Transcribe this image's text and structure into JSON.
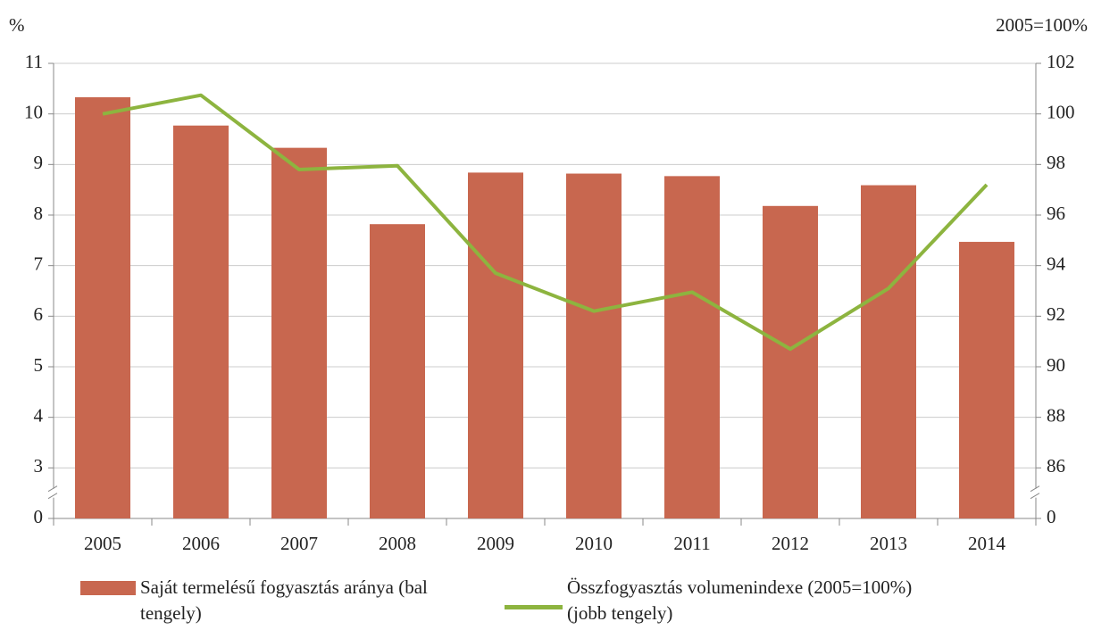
{
  "chart_data": {
    "type": "bar_line",
    "y_unit": "%",
    "y2_unit": "2005=100%",
    "categories": [
      "2005",
      "2006",
      "2007",
      "2008",
      "2009",
      "2010",
      "2011",
      "2012",
      "2013",
      "2014"
    ],
    "series": [
      {
        "name": "Saját termelésű fogyasztás aránya (bal tengely)",
        "type": "bar",
        "color": "#c8674f",
        "axis": "y",
        "values": [
          10.33,
          9.77,
          9.33,
          7.82,
          8.84,
          8.82,
          8.77,
          8.18,
          8.59,
          7.47
        ]
      },
      {
        "name": "Összfogyasztás volumenindexe (2005=100%) (jobb tengely)",
        "type": "line",
        "color": "#8db43f",
        "axis": "y2",
        "values": [
          100.0,
          100.74,
          97.8,
          97.95,
          93.7,
          92.2,
          92.95,
          90.7,
          93.1,
          97.2
        ]
      }
    ],
    "ylim": [
      0,
      11
    ],
    "yticks": [
      0,
      3,
      4,
      5,
      6,
      7,
      8,
      9,
      10,
      11
    ],
    "y2lim": [
      0,
      102
    ],
    "y2ticks": [
      0,
      86,
      88,
      90,
      92,
      94,
      96,
      98,
      100,
      102
    ],
    "axis_break": true,
    "grid": true,
    "legend": "bottom"
  }
}
